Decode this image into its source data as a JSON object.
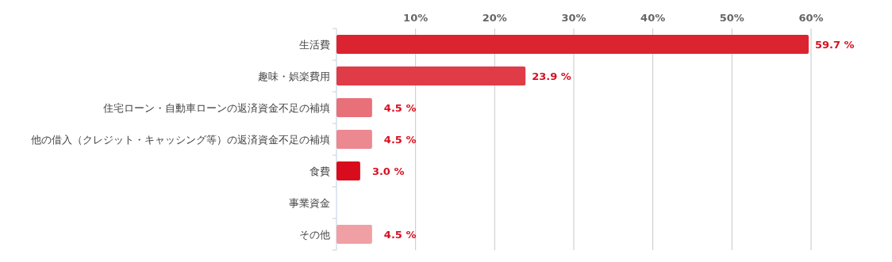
{
  "chart_data": {
    "type": "bar",
    "orientation": "horizontal",
    "categories": [
      "生活費",
      "趣味・娯楽費用",
      "住宅ローン・自動車ローンの返済資金不足の補填",
      "他の借入（クレジット・キャッシング等）の返済資金不足の補填",
      "食費",
      "事業資金",
      "その他"
    ],
    "values": [
      59.7,
      23.9,
      4.5,
      4.5,
      3.0,
      0,
      4.5
    ],
    "colors": [
      "#dc2430",
      "#e03c48",
      "#e87078",
      "#ec8890",
      "#d80c1c",
      null,
      "#f0a0a4"
    ],
    "value_labels": [
      "59.7 %",
      "23.9 %",
      "4.5 %",
      "4.5 %",
      "3.0 %",
      null,
      "4.5 %"
    ],
    "xlim": [
      0,
      60
    ],
    "xticks": [
      {
        "value": 10,
        "label": "10%"
      },
      {
        "value": 20,
        "label": "20%"
      },
      {
        "value": 30,
        "label": "30%"
      },
      {
        "value": 40,
        "label": "40%"
      },
      {
        "value": 50,
        "label": "50%"
      },
      {
        "value": 60,
        "label": "60%"
      }
    ],
    "grid": "x"
  }
}
